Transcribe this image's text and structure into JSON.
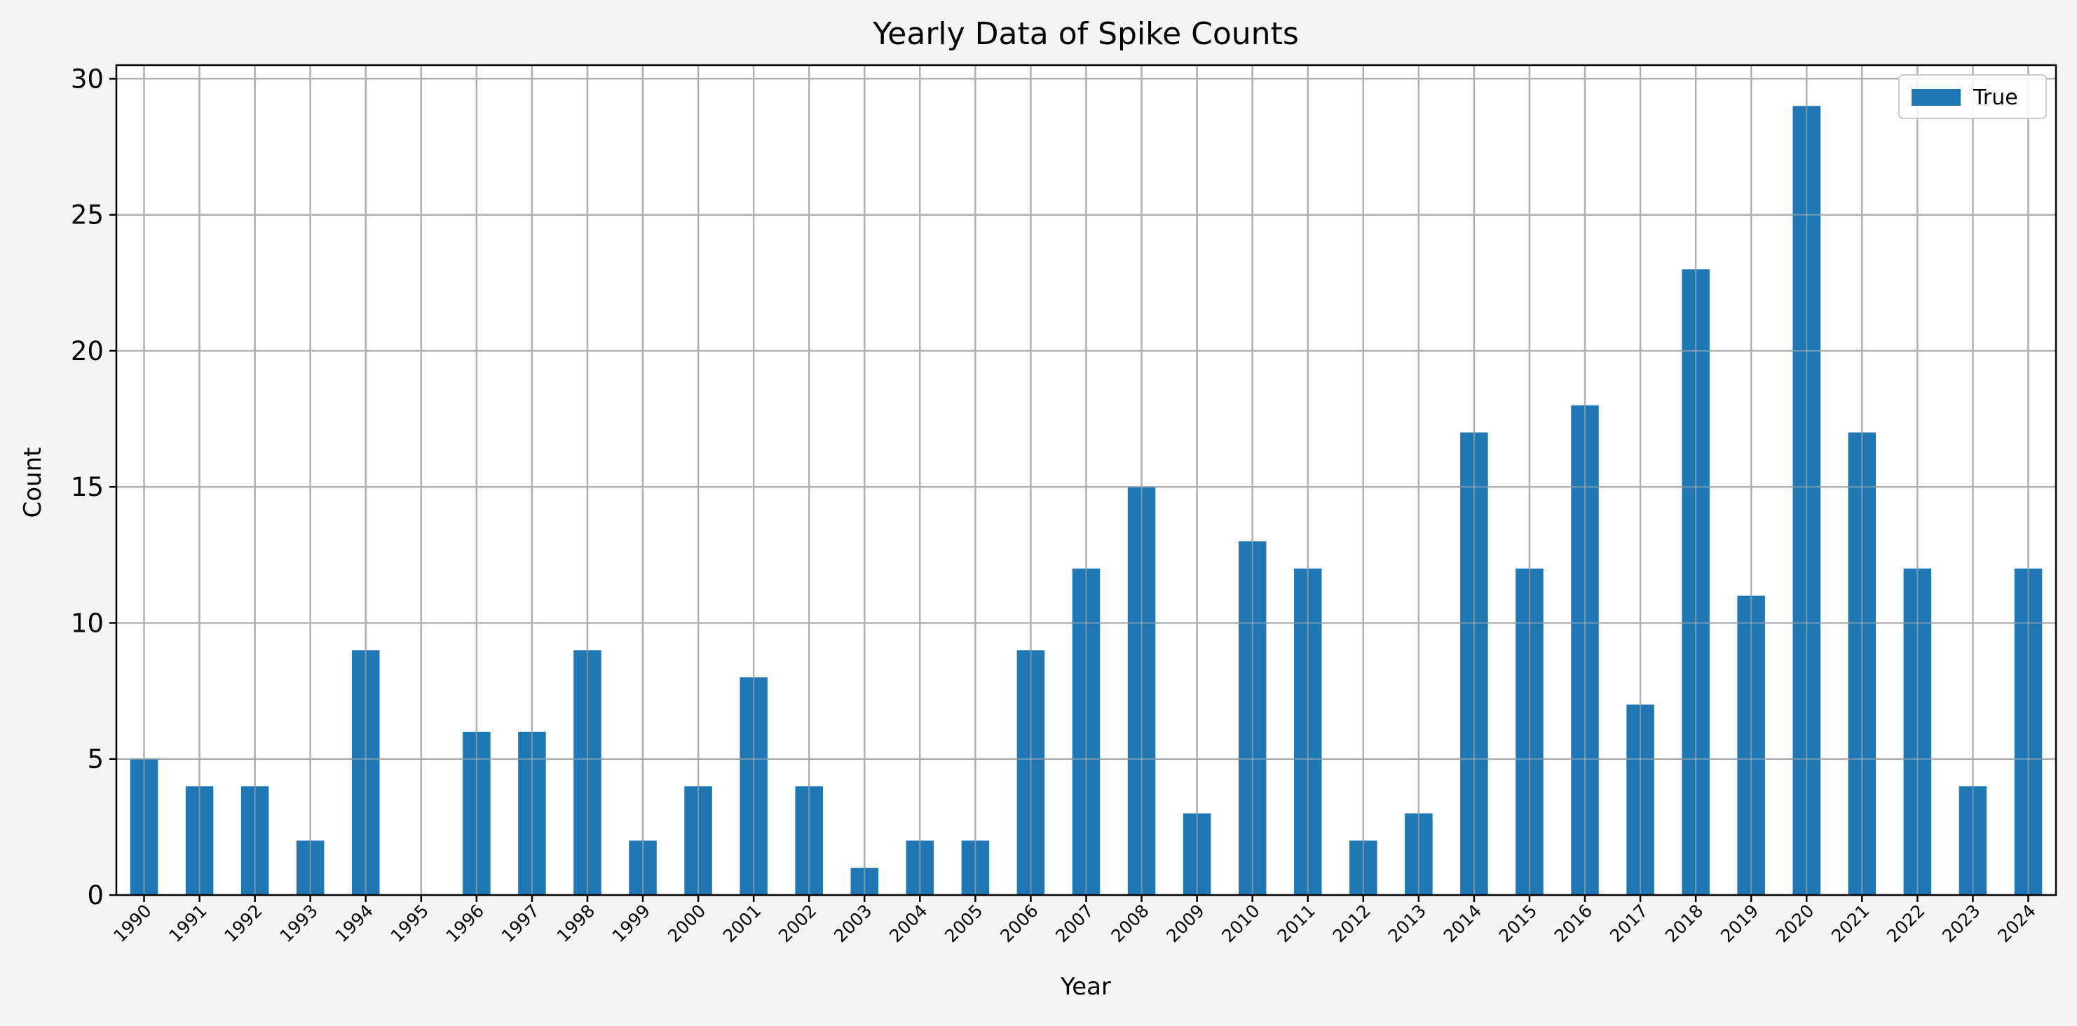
{
  "chart_data": {
    "type": "bar",
    "title": "Yearly Data of Spike Counts",
    "xlabel": "Year",
    "ylabel": "Count",
    "categories": [
      "1990",
      "1991",
      "1992",
      "1993",
      "1994",
      "1995",
      "1996",
      "1997",
      "1998",
      "1999",
      "2000",
      "2001",
      "2002",
      "2003",
      "2004",
      "2005",
      "2006",
      "2007",
      "2008",
      "2009",
      "2010",
      "2011",
      "2012",
      "2013",
      "2014",
      "2015",
      "2016",
      "2017",
      "2018",
      "2019",
      "2020",
      "2021",
      "2022",
      "2023",
      "2024"
    ],
    "series": [
      {
        "name": "True",
        "color": "#1f77b4",
        "values": [
          5,
          4,
          4,
          2,
          9,
          0,
          6,
          6,
          9,
          2,
          4,
          8,
          4,
          1,
          2,
          2,
          9,
          12,
          15,
          3,
          13,
          12,
          2,
          3,
          17,
          12,
          18,
          7,
          23,
          11,
          29,
          17,
          12,
          4,
          12
        ]
      }
    ],
    "ylim": [
      0,
      30.5
    ],
    "yticks": [
      0,
      5,
      10,
      15,
      20,
      25,
      30
    ],
    "grid": true,
    "legend_position": "top-right",
    "colors": {
      "bar": "#1f77b4",
      "grid": "#b0b0b0",
      "background": "#f4f4f4",
      "plot_background": "#ffffff"
    }
  }
}
